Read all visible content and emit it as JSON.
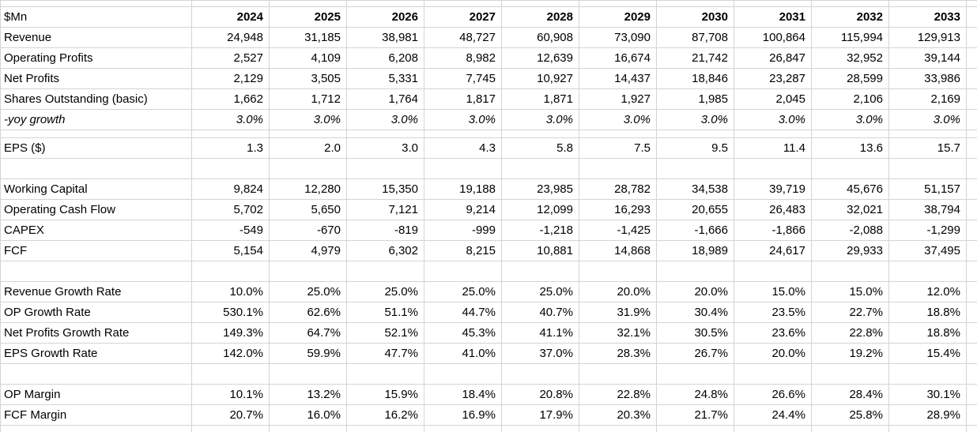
{
  "sheet": {
    "unit_label": "$Mn",
    "years": [
      "2024",
      "2025",
      "2026",
      "2027",
      "2028",
      "2029",
      "2030",
      "2031",
      "2032",
      "2033"
    ],
    "rows": [
      {
        "id": "revenue",
        "label": "Revenue",
        "values": [
          "24,948",
          "31,185",
          "38,981",
          "48,727",
          "60,908",
          "73,090",
          "87,708",
          "100,864",
          "115,994",
          "129,913"
        ]
      },
      {
        "id": "operating-profits",
        "label": "Operating Profits",
        "values": [
          "2,527",
          "4,109",
          "6,208",
          "8,982",
          "12,639",
          "16,674",
          "21,742",
          "26,847",
          "32,952",
          "39,144"
        ]
      },
      {
        "id": "net-profits",
        "label": "Net Profits",
        "values": [
          "2,129",
          "3,505",
          "5,331",
          "7,745",
          "10,927",
          "14,437",
          "18,846",
          "23,287",
          "28,599",
          "33,986"
        ]
      },
      {
        "id": "shares-outstanding-basic",
        "label": "Shares Outstanding (basic)",
        "values": [
          "1,662",
          "1,712",
          "1,764",
          "1,817",
          "1,871",
          "1,927",
          "1,985",
          "2,045",
          "2,106",
          "2,169"
        ]
      },
      {
        "id": "yoy-growth",
        "label": "-yoy growth",
        "italic": true,
        "values": [
          "3.0%",
          "3.0%",
          "3.0%",
          "3.0%",
          "3.0%",
          "3.0%",
          "3.0%",
          "3.0%",
          "3.0%",
          "3.0%"
        ]
      },
      {
        "id": "spacer-thin",
        "spacer": "thin"
      },
      {
        "id": "eps",
        "label": "EPS ($)",
        "values": [
          "1.3",
          "2.0",
          "3.0",
          "4.3",
          "5.8",
          "7.5",
          "9.5",
          "11.4",
          "13.6",
          "15.7"
        ]
      },
      {
        "id": "spacer-1",
        "spacer": "normal"
      },
      {
        "id": "working-capital",
        "label": "Working Capital",
        "values": [
          "9,824",
          "12,280",
          "15,350",
          "19,188",
          "23,985",
          "28,782",
          "34,538",
          "39,719",
          "45,676",
          "51,157"
        ]
      },
      {
        "id": "operating-cash-flow",
        "label": "Operating Cash Flow",
        "values": [
          "5,702",
          "5,650",
          "7,121",
          "9,214",
          "12,099",
          "16,293",
          "20,655",
          "26,483",
          "32,021",
          "38,794"
        ]
      },
      {
        "id": "capex",
        "label": "CAPEX",
        "values": [
          "-549",
          "-670",
          "-819",
          "-999",
          "-1,218",
          "-1,425",
          "-1,666",
          "-1,866",
          "-2,088",
          "-1,299"
        ]
      },
      {
        "id": "fcf",
        "label": "FCF",
        "values": [
          "5,154",
          "4,979",
          "6,302",
          "8,215",
          "10,881",
          "14,868",
          "18,989",
          "24,617",
          "29,933",
          "37,495"
        ]
      },
      {
        "id": "spacer-2",
        "spacer": "normal"
      },
      {
        "id": "revenue-growth-rate",
        "label": "Revenue Growth Rate",
        "values": [
          "10.0%",
          "25.0%",
          "25.0%",
          "25.0%",
          "25.0%",
          "20.0%",
          "20.0%",
          "15.0%",
          "15.0%",
          "12.0%"
        ]
      },
      {
        "id": "op-growth-rate",
        "label": "OP Growth Rate",
        "values": [
          "530.1%",
          "62.6%",
          "51.1%",
          "44.7%",
          "40.7%",
          "31.9%",
          "30.4%",
          "23.5%",
          "22.7%",
          "18.8%"
        ]
      },
      {
        "id": "net-profits-growth-rate",
        "label": "Net Profits Growth Rate",
        "values": [
          "149.3%",
          "64.7%",
          "52.1%",
          "45.3%",
          "41.1%",
          "32.1%",
          "30.5%",
          "23.6%",
          "22.8%",
          "18.8%"
        ]
      },
      {
        "id": "eps-growth-rate",
        "label": "EPS Growth Rate",
        "values": [
          "142.0%",
          "59.9%",
          "47.7%",
          "41.0%",
          "37.0%",
          "28.3%",
          "26.7%",
          "20.0%",
          "19.2%",
          "15.4%"
        ]
      },
      {
        "id": "spacer-3",
        "spacer": "normal"
      },
      {
        "id": "op-margin",
        "label": "OP Margin",
        "values": [
          "10.1%",
          "13.2%",
          "15.9%",
          "18.4%",
          "20.8%",
          "22.8%",
          "24.8%",
          "26.6%",
          "28.4%",
          "30.1%"
        ]
      },
      {
        "id": "fcf-margin",
        "label": "FCF Margin",
        "values": [
          "20.7%",
          "16.0%",
          "16.2%",
          "16.9%",
          "17.9%",
          "20.3%",
          "21.7%",
          "24.4%",
          "25.8%",
          "28.9%"
        ]
      }
    ],
    "colors": {
      "gridline": "#d4d4d4",
      "text": "#000000",
      "background": "#ffffff"
    }
  }
}
